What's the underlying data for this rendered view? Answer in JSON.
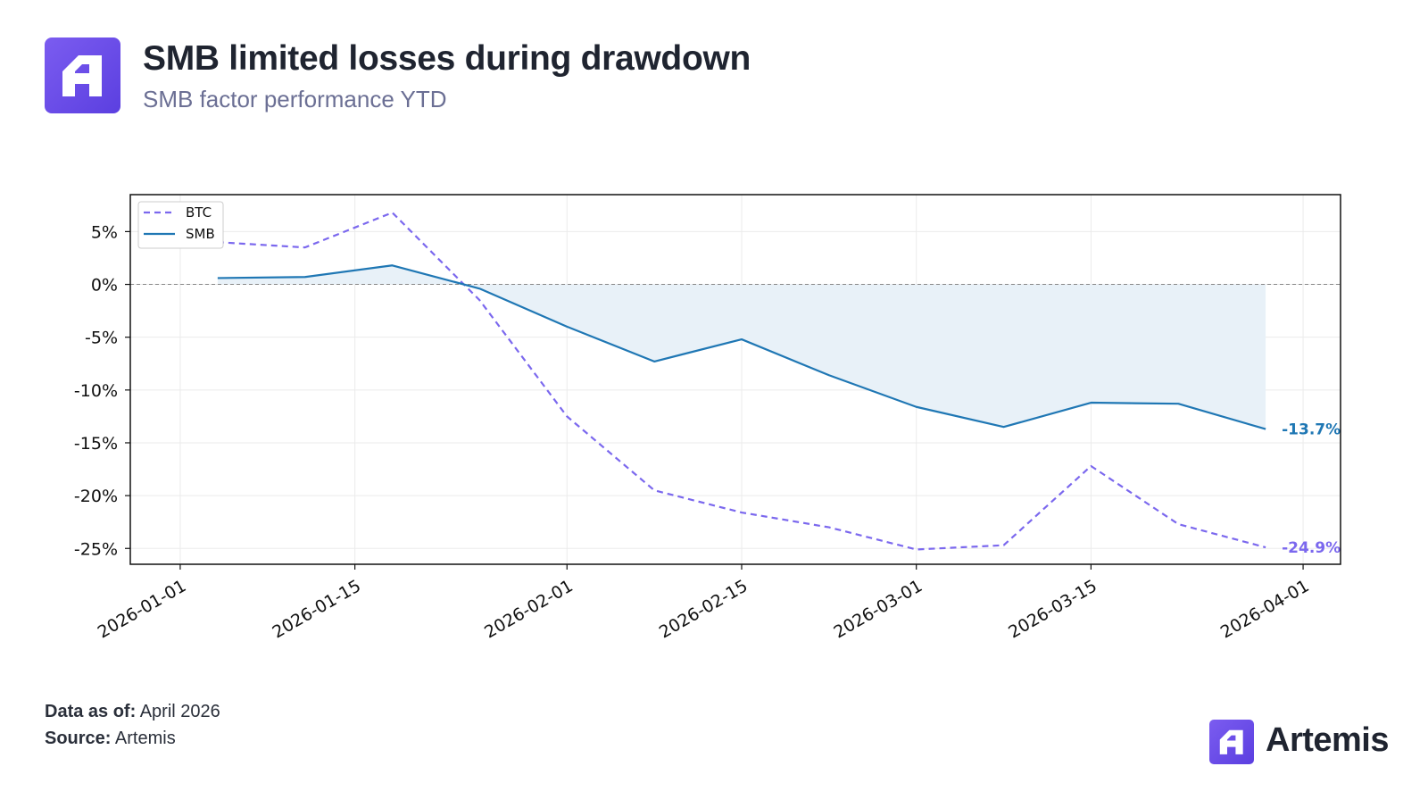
{
  "header": {
    "logo_icon": "artemis-logo-icon",
    "title": "SMB limited losses during drawdown",
    "subtitle": "SMB factor performance YTD"
  },
  "footer": {
    "data_as_of_label": "Data as of:",
    "data_as_of_value": "April 2026",
    "source_label": "Source:",
    "source_value": "Artemis",
    "brand_icon": "artemis-logo-icon",
    "brand_name": "Artemis"
  },
  "colors": {
    "btc": "#7b68ee",
    "smb": "#1f77b4",
    "fill": "#e8f1f8",
    "brand": "#6a4cf0"
  },
  "chart_data": {
    "type": "line",
    "x_axis": {
      "type": "date",
      "range": [
        "2025-12-28",
        "2026-04-04"
      ],
      "ticks": [
        "2026-01-01",
        "2026-01-15",
        "2026-02-01",
        "2026-02-15",
        "2026-03-01",
        "2026-03-15",
        "2026-04-01"
      ]
    },
    "y_axis": {
      "range": [
        -26.5,
        8.5
      ],
      "ticks": [
        5,
        0,
        -5,
        -10,
        -15,
        -20,
        -25
      ],
      "tick_format": "percent"
    },
    "grid": true,
    "zero_line": "dashed",
    "legend": {
      "position": "top-left",
      "entries": [
        "BTC",
        "SMB"
      ]
    },
    "series": [
      {
        "name": "BTC",
        "style": "dashed",
        "color": "#7b68ee",
        "end_label": "-24.9%",
        "points": [
          [
            "2026-01-04",
            4.0
          ],
          [
            "2026-01-11",
            3.5
          ],
          [
            "2026-01-18",
            6.8
          ],
          [
            "2026-01-25",
            -1.5
          ],
          [
            "2026-02-01",
            -12.5
          ],
          [
            "2026-02-08",
            -19.5
          ],
          [
            "2026-02-15",
            -21.6
          ],
          [
            "2026-02-22",
            -23.0
          ],
          [
            "2026-03-01",
            -25.1
          ],
          [
            "2026-03-08",
            -24.7
          ],
          [
            "2026-03-15",
            -17.2
          ],
          [
            "2026-03-22",
            -22.7
          ],
          [
            "2026-03-29",
            -24.9
          ]
        ]
      },
      {
        "name": "SMB",
        "style": "solid",
        "color": "#1f77b4",
        "fill_to_zero": true,
        "end_label": "-13.7%",
        "points": [
          [
            "2026-01-04",
            0.6
          ],
          [
            "2026-01-11",
            0.7
          ],
          [
            "2026-01-18",
            1.8
          ],
          [
            "2026-01-25",
            -0.4
          ],
          [
            "2026-02-01",
            -4.0
          ],
          [
            "2026-02-08",
            -7.3
          ],
          [
            "2026-02-15",
            -5.2
          ],
          [
            "2026-02-22",
            -8.6
          ],
          [
            "2026-03-01",
            -11.6
          ],
          [
            "2026-03-08",
            -13.5
          ],
          [
            "2026-03-15",
            -11.2
          ],
          [
            "2026-03-22",
            -11.3
          ],
          [
            "2026-03-29",
            -13.7
          ]
        ]
      }
    ]
  }
}
